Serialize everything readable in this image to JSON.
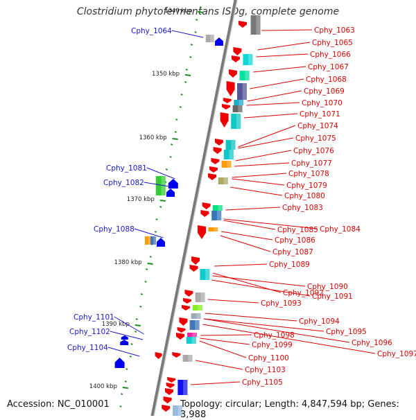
{
  "title": "Clostridium phytofermentans ISDg, complete genome",
  "footer": {
    "accession": "Accession: NC_010001",
    "summary": "Topology: circular; Length: 4,847,594 bp; Genes: 3,988"
  },
  "colors": {
    "forward_label": "#dd0000",
    "reverse_label": "#1616cc",
    "forward_gene": "#ee0000",
    "reverse_gene": "#0000ee",
    "backbone": "#7a7a7a",
    "tick": "#1a8a1a"
  },
  "scale_labels": [
    "1340 kbp",
    "1350 kbp",
    "1360 kbp",
    "1370 kbp",
    "1380 kbp",
    "1390 kbp",
    "1400 kbp"
  ],
  "forward_genes": [
    "Cphy_1063",
    "Cphy_1065",
    "Cphy_1066",
    "Cphy_1067",
    "Cphy_1068",
    "Cphy_1069",
    "Cphy_1070",
    "Cphy_1071",
    "Cphy_1074",
    "Cphy_1075",
    "Cphy_1076",
    "Cphy_1077",
    "Cphy_1078",
    "Cphy_1079",
    "Cphy_1080",
    "Cphy_1083",
    "Cphy_1085",
    "Cphy_1084",
    "Cphy_1086",
    "Cphy_1087",
    "Cphy_1089",
    "Cphy_1090",
    "Cphy_1091",
    "Cphy_1092",
    "Cphy_1093",
    "Cphy_1094",
    "Cphy_1095",
    "Cphy_1096",
    "Cphy_1097",
    "Cphy_1098",
    "Cphy_1099",
    "Cphy_1100",
    "Cphy_1103",
    "Cphy_1105"
  ],
  "reverse_genes": [
    "Cphy_1064",
    "Cphy_1081",
    "Cphy_1082",
    "Cphy_1088",
    "Cphy_1101",
    "Cphy_1102",
    "Cphy_1104"
  ]
}
